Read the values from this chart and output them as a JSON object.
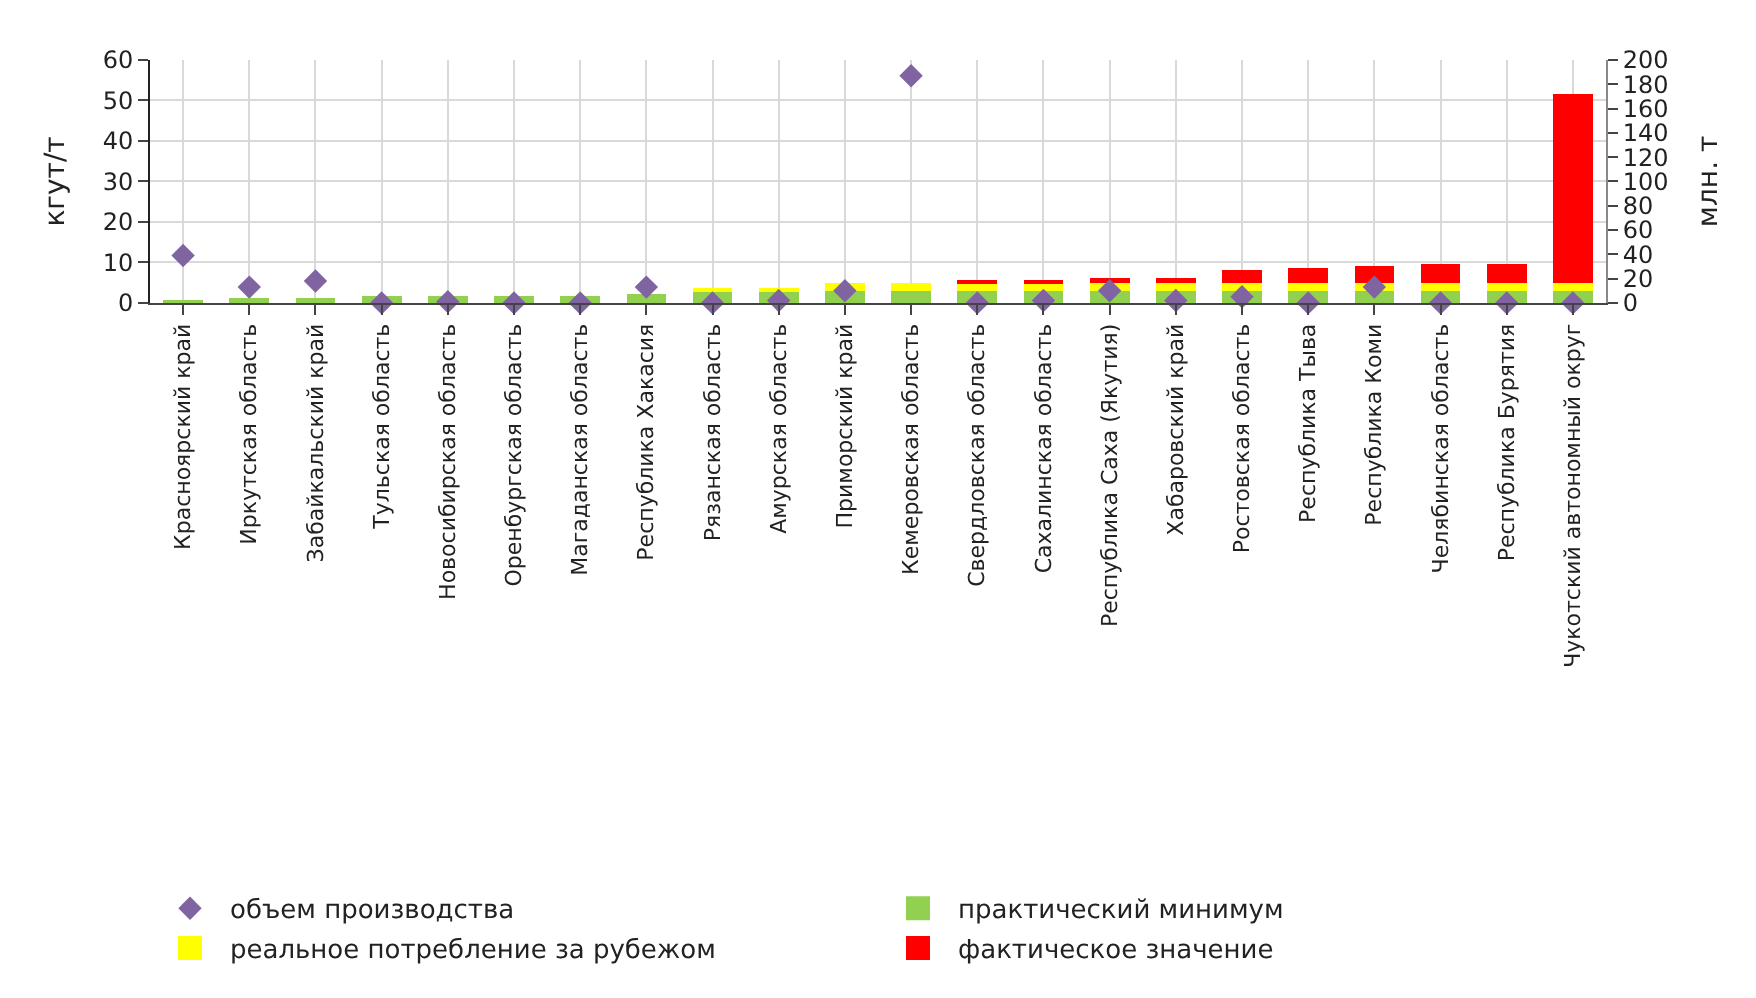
{
  "chart_data": {
    "type": "bar",
    "stacked": true,
    "ylabel": "кгут/т",
    "y2label": "млн. т",
    "categories": [
      "Красноярский край",
      "Иркутская область",
      "Забайкальский край",
      "Тульская область",
      "Новосибирская область",
      "Оренбургская область",
      "Магаданская область",
      "Республика Хакасия",
      "Рязанская область",
      "Амурская область",
      "Приморский край",
      "Кемеровская область",
      "Свердловская область",
      "Сахалинская область",
      "Республика Саха (Якутия)",
      "Хабаровский край",
      "Ростовская область",
      "Республика Тыва",
      "Республика Коми",
      "Челябинская область",
      "Республика Бурятия",
      "Чукотский автономный округ"
    ],
    "series": [
      {
        "name": "практический минимум",
        "color": "#92d050",
        "values": [
          0.6,
          1.2,
          1.2,
          1.6,
          1.6,
          1.6,
          1.6,
          2.2,
          3,
          3,
          3,
          3,
          3,
          3,
          3,
          3,
          3,
          3,
          3,
          3,
          3,
          3
        ]
      },
      {
        "name": "реальное потребление за рубежом",
        "color": "#ffff00",
        "values": [
          0,
          0,
          0,
          0,
          0,
          0,
          0,
          0,
          0.8,
          0.8,
          2,
          2,
          2,
          2,
          2,
          2,
          2,
          2,
          2,
          2,
          2,
          2
        ]
      },
      {
        "name": "фактическое значение",
        "color": "#ff0000",
        "values": [
          0,
          0,
          0,
          0,
          0,
          0,
          0,
          0,
          0,
          0,
          0,
          0,
          0.7,
          0.7,
          1.1,
          1.1,
          3.1,
          3.7,
          4,
          4.6,
          4.6,
          46.6
        ]
      },
      {
        "name": "объем производства",
        "color": "#8064a2",
        "type": "scatter",
        "axis": "y2",
        "marker": "diamond",
        "values": [
          39,
          13,
          18,
          0,
          1,
          0,
          0,
          13,
          0,
          2,
          10,
          187,
          0,
          2,
          10,
          2,
          5,
          0,
          13,
          0,
          0,
          0
        ]
      }
    ],
    "ylim": [
      0,
      60
    ],
    "yticks": [
      0,
      10,
      20,
      30,
      40,
      50,
      60
    ],
    "y2lim": [
      0,
      200
    ],
    "y2ticks": [
      0,
      20,
      40,
      60,
      80,
      100,
      120,
      140,
      160,
      180,
      200
    ],
    "grid": true,
    "legend": "bottom"
  }
}
